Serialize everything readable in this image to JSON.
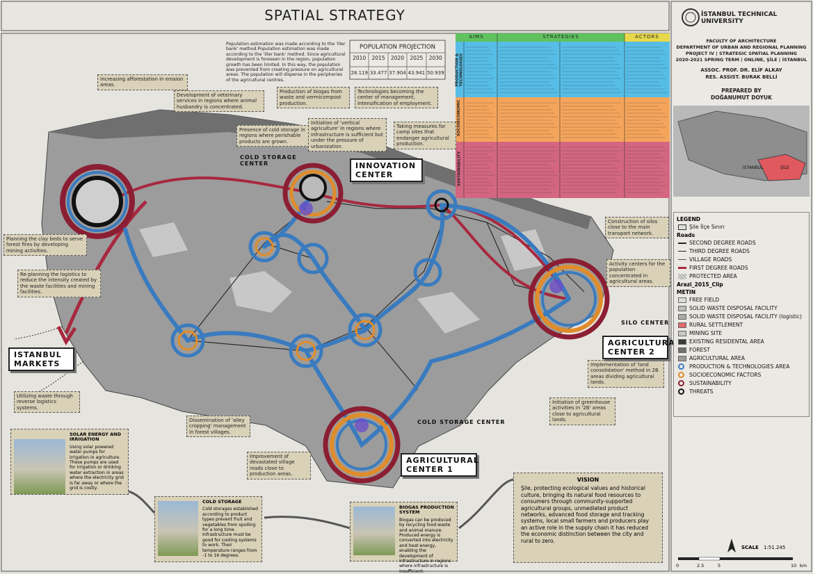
{
  "header": {
    "title": "SPATIAL STRATEGY"
  },
  "population": {
    "intro": "Population estimation was made according to the 'iller bank' method.Population estimation was made according to the 'iller bank' method. Since agricultural development is foreseen in the region, population growth has been limited. In this way, the population was prevented from creating pressure on agricultural areas. The population will disperse in the peripheries of the agricultural centres.",
    "title": "POPULATION PROJECTION",
    "years": [
      "2010",
      "2015",
      "2020",
      "2025",
      "2030"
    ],
    "values": [
      "28.119",
      "33.477",
      "37.904",
      "43.941",
      "50.939"
    ]
  },
  "matrix": {
    "headers": [
      "AIMS",
      "STRATEGIES",
      "ACTORS"
    ],
    "rows": [
      "PRODUCTION & TECHNOLOGIES",
      "SOCIOECONOMIC",
      "SUSTAINABILITY"
    ]
  },
  "institution": {
    "university": "İSTANBUL TECHNICAL UNIVERSITY",
    "lines": [
      "FACULTY OF ARCHITECTURE",
      "DEPARTMENT OF URBAN AND REGIONAL PLANNING",
      "PROJECT IV | STRATEGIC SPATIAL PLANNING",
      "2020-2021 SPRING TERM | ONLINE, ŞİLE | İSTANBUL"
    ],
    "advisors": [
      "ASSOC. PROF. DR. ELİF ALKAY",
      "RES. ASSIST. BURAK BELLİ"
    ],
    "prepared_label": "PREPARED BY",
    "author": "DOĞANUMUT DOYUK"
  },
  "minimap": {
    "labels": [
      "İSTANBUL",
      "ŞİLE"
    ]
  },
  "annotations": [
    "Increasing afforestation in erosion areas.",
    "Development of veterinary services in regions where animal husbandry is concentrated.",
    "Production of biogas from waste and vermicompost production.",
    "Technologies becoming the center of management, intensification of employment.",
    "Presence of cold storage in regions where perishable products are grown.",
    "Initiation of 'vertical agriculture' in regions where infrastructure is sufficient but under the pressure of urbanization.",
    "Taking measures for camp sites that endanger agricultural production.",
    "Planning the clay beds to serve forest fires by developing mining activities.",
    "Re-planning the logistics to reduce the intensity created by the waste facilities and mining facilities.",
    "Construction of silos close to the main transport network.",
    "Activity centers for the population concentrated in agricultural areas.",
    "Implementation of 'land consolidation' method in 2B areas dividing agricultural lands.",
    "Initiation of greenhouse activities in '2B' areas close to agricultural lands.",
    "Utilizing waste through reverse logistics systems.",
    "Dissemination of 'alley cropping' management in forest villages.",
    "Improvement of devastated village roads close to production areas."
  ],
  "centers": [
    "COLD STORAGE CENTER",
    "INNOVATION CENTER",
    "SILO CENTER",
    "AGRICULTURAL CENTER 2",
    "COLD STORAGE CENTER",
    "AGRICULTURAL CENTER 1",
    "ISTANBUL MARKETS"
  ],
  "legend": {
    "title": "LEGEND",
    "boundary": "Şile İlçe Sınırı",
    "roads_title": "Roads",
    "roads": [
      "SECOND DEGREE ROADS",
      "THIRD DEGREE ROADS",
      "VILLAGE ROADS",
      "FIRST DEGREE ROADS",
      "PROTECTED AREA"
    ],
    "land_title": "Arazi_2015_Clip",
    "land_subtitle": "METIN",
    "land": [
      "FREE FIELD",
      "SOLID WASTE DISPOSAL FACILITY",
      "SOLID WASTE DISPOSAL FACILITY (logistic)",
      "RURAL SETTLEMENT",
      "MINING SITE",
      "EXISTING RESIDENTAL AREA",
      "FOREST",
      "AGRICULTURAL AREA"
    ],
    "strategy": [
      "PRODUCTION & TECHNOLOGIES AREA",
      "SOCIOECONOMIC FACTORS",
      "SUSTAINABILITY",
      "THREATS"
    ]
  },
  "scale": {
    "label": "SCALE",
    "ratio": "1:51.245",
    "ticks": [
      "0",
      "2.5",
      "5",
      "10"
    ],
    "unit": "km"
  },
  "info_boxes": [
    {
      "title": "SOLAR ENERGY AND IRRIGATION",
      "text": "Using solar powered water pumps for irrigation in agriculture. These pumps are used for irrigation or drinking water extraction in areas where the electricity grid is far away or where the grid is costly."
    },
    {
      "title": "COLD STORAGE",
      "text": "Cold storages established according to product types prevent fruit and vegetables from spoiling for a long time. Infrastructure must be good for cooling systems to work. Their temperature ranges from -1 to 16 degrees."
    },
    {
      "title": "BIOGAS PRODUCTION SYSTEM",
      "text": "Biogas can be produced by recycling food waste and animal manure. Produced energy is converted into electricity and heat energy, enabling the development of infrastructure in regions where infrastructure is insufficient."
    }
  ],
  "vision": {
    "title": "VISION",
    "text": "Şile, protecting ecological values and historical culture, bringing its natural food resources to consumers through community-supported agricultural groups, unmediated product networks, advanced food storage and tracking systems, local small farmers and producers play an active role in the supply chain it has reduced the economic distinction between the city and rural to zero."
  }
}
